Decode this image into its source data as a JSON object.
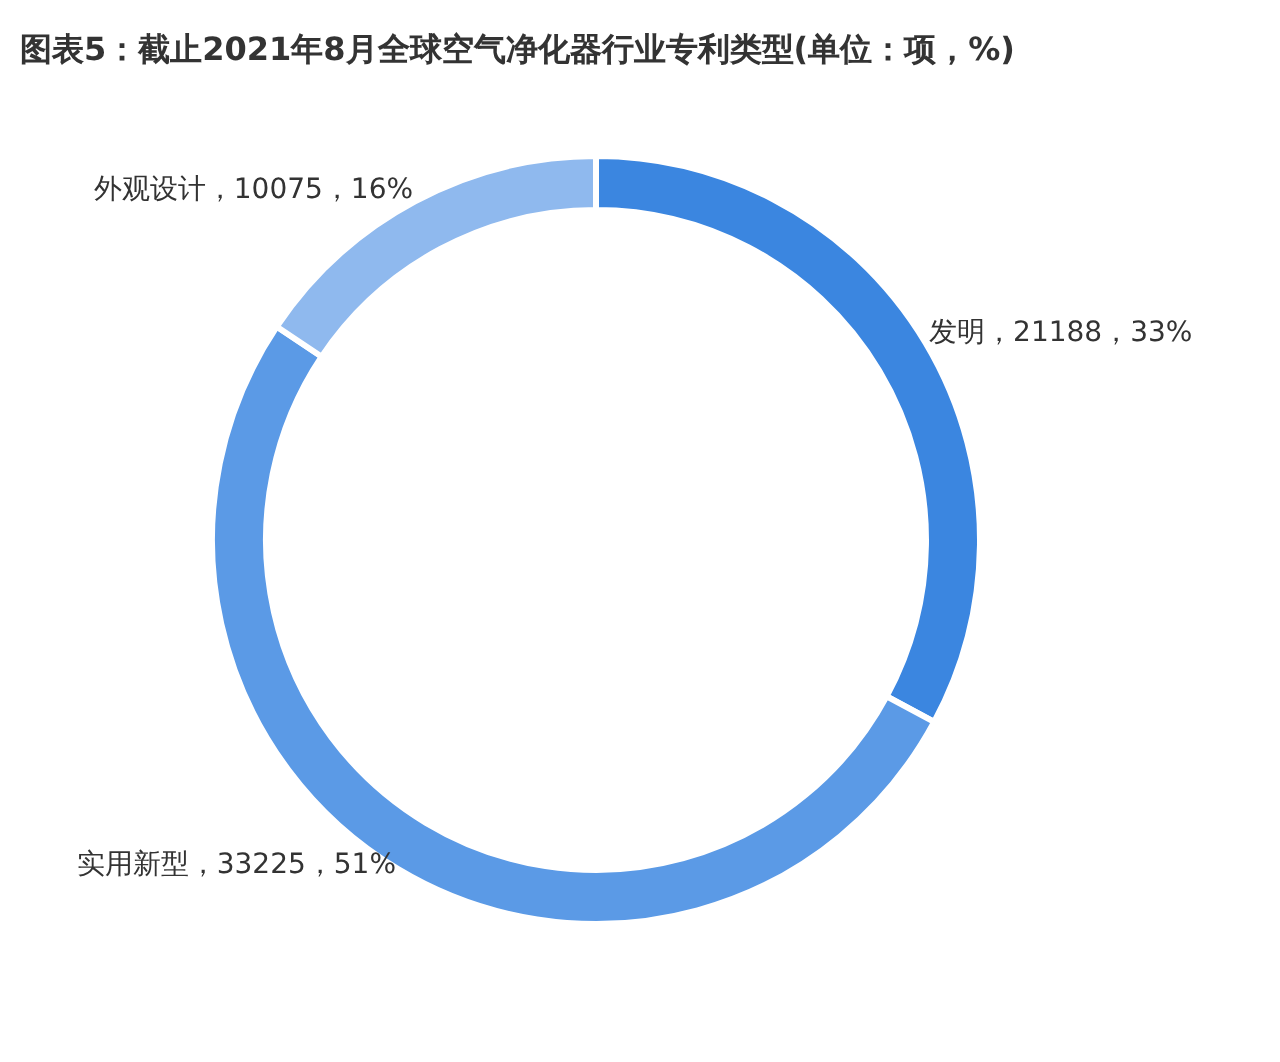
{
  "chart_data": {
    "type": "donut",
    "title": "图表5：截止2021年8月全球空气净化器行业专利类型(单位：项，%)",
    "categories": [
      "发明",
      "实用新型",
      "外观设计"
    ],
    "values": [
      21188,
      33225,
      10075
    ],
    "value_labels": [
      "21188，33%",
      "33225，51%",
      "10075，16%"
    ],
    "colors": [
      "#3b86e0",
      "#5b9ae6",
      "#8fb9ee"
    ]
  }
}
